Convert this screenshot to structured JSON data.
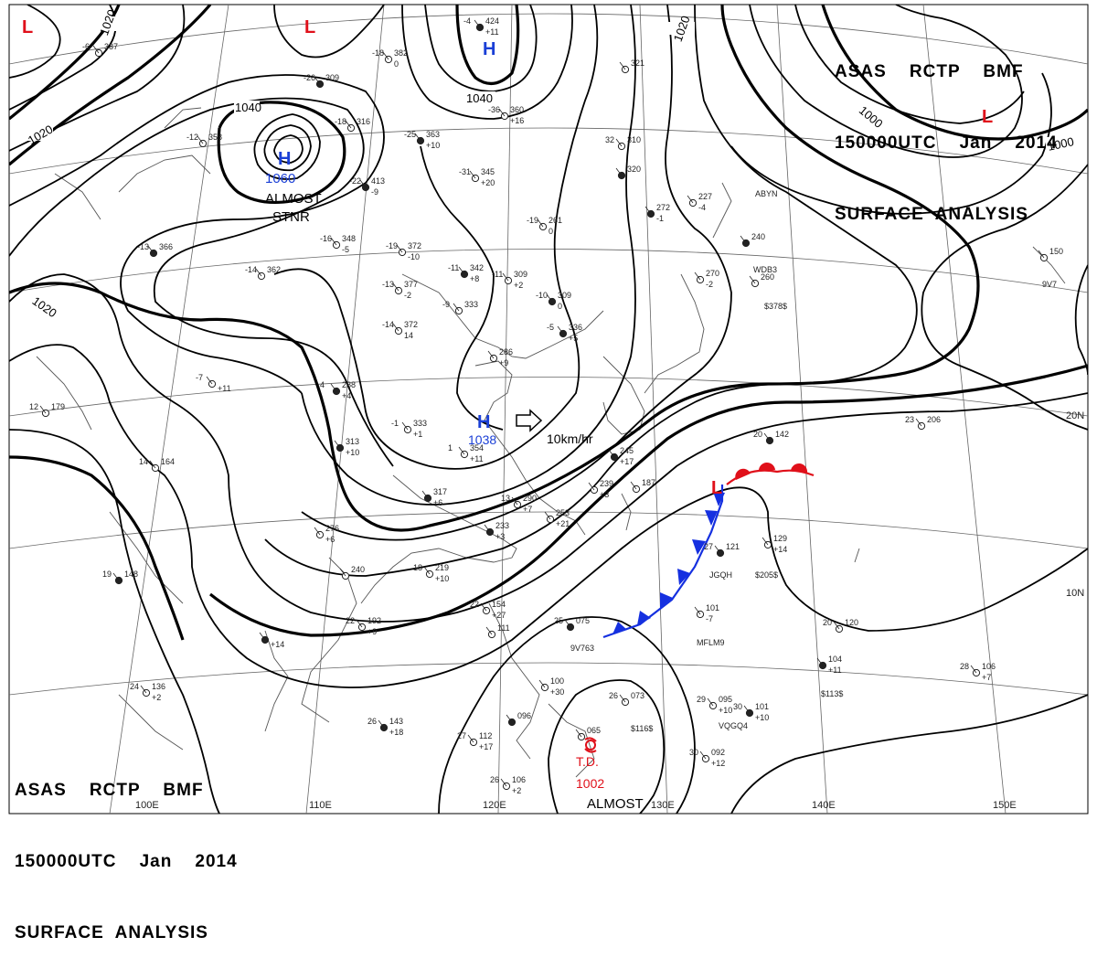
{
  "header": {
    "top_right": {
      "line1": "ASAS    RCTP    BMF",
      "line2": "150000UTC    Jan    2014",
      "line3": "SURFACE  ANALYSIS"
    },
    "bottom_left": {
      "line1": "ASAS    RCTP    BMF",
      "line2": "150000UTC    Jan    2014",
      "line3": "SURFACE  ANALYSIS"
    }
  },
  "colors": {
    "high": "#1a3fd6",
    "low": "#e0101a",
    "cold_front": "#1530e0",
    "warm_front": "#e0101a",
    "isobar": "#000000",
    "grid": "#555555"
  },
  "highs": [
    {
      "symbol": "H",
      "pressure": "1060",
      "note1": "ALMOST",
      "note2": "STNR"
    },
    {
      "symbol": "H",
      "pressure": "1038",
      "motion": "10km/hr"
    },
    {
      "symbol": "H",
      "pressure": ""
    }
  ],
  "lows": [
    {
      "symbol": "L"
    },
    {
      "symbol": "L"
    },
    {
      "symbol": "L"
    },
    {
      "symbol": "L"
    }
  ],
  "tropical_depression": {
    "label": "T.D.",
    "pressure": "1002",
    "note": "ALMOST"
  },
  "isobar_labels": [
    "1020",
    "1040",
    "1040",
    "1020",
    "1020",
    "1000",
    "1000",
    "1020"
  ],
  "longitude_labels": [
    "100E",
    "110E",
    "120E",
    "130E",
    "140E",
    "150E"
  ],
  "latitude_labels": [
    "20N",
    "10N"
  ],
  "station_plots": [
    {
      "t": "-4",
      "p": "424",
      "d": "+11"
    },
    {
      "t": "-6",
      "p": "387",
      "d": ""
    },
    {
      "t": "-18",
      "p": "382",
      "d": "0"
    },
    {
      "t": "-26",
      "p": "309",
      "d": ""
    },
    {
      "t": "-18",
      "p": "316",
      "d": ""
    },
    {
      "t": "-12",
      "p": "358",
      "d": ""
    },
    {
      "t": "-25",
      "p": "363",
      "d": "+10"
    },
    {
      "t": "-36",
      "p": "360",
      "d": "+16"
    },
    {
      "t": "-31",
      "p": "345",
      "d": "+20"
    },
    {
      "t": "-22",
      "p": "413",
      "d": "-9"
    },
    {
      "t": "-16",
      "p": "348",
      "d": "-5"
    },
    {
      "t": "-19",
      "p": "372",
      "d": "-10"
    },
    {
      "t": "-13",
      "p": "366",
      "d": ""
    },
    {
      "t": "-14",
      "p": "362",
      "d": ""
    },
    {
      "t": "-13",
      "p": "377",
      "d": "-2"
    },
    {
      "t": "-11",
      "p": "342",
      "d": "+8"
    },
    {
      "t": "-11",
      "p": "309",
      "d": "+2"
    },
    {
      "t": "-9",
      "p": "333",
      "d": ""
    },
    {
      "t": "-10",
      "p": "309",
      "d": "0"
    },
    {
      "t": "-14",
      "p": "372",
      "d": "14"
    },
    {
      "t": "-19",
      "p": "261",
      "d": "0"
    },
    {
      "t": "-5",
      "p": "336",
      "d": "+5"
    },
    {
      "t": "",
      "p": "286",
      "d": "+9"
    },
    {
      "t": "-7",
      "p": "",
      "d": "+11"
    },
    {
      "t": "4",
      "p": "288",
      "d": "+4"
    },
    {
      "t": "-1",
      "p": "333",
      "d": "+1"
    },
    {
      "t": "1",
      "p": "354",
      "d": "+11"
    },
    {
      "t": "",
      "p": "313",
      "d": "+10"
    },
    {
      "t": "12",
      "p": "179",
      "d": ""
    },
    {
      "t": "14",
      "p": "164",
      "d": ""
    },
    {
      "t": "",
      "p": "317",
      "d": "+6"
    },
    {
      "t": "",
      "p": "276",
      "d": "+6"
    },
    {
      "t": "",
      "p": "240",
      "d": ""
    },
    {
      "t": "19",
      "p": "148",
      "d": ""
    },
    {
      "t": "18",
      "p": "219",
      "d": "+10"
    },
    {
      "t": "13",
      "p": "290",
      "d": "+7"
    },
    {
      "t": "",
      "p": "233",
      "d": "+3"
    },
    {
      "t": "",
      "p": "253",
      "d": "+21"
    },
    {
      "t": "",
      "p": "239",
      "d": "+3"
    },
    {
      "t": "",
      "p": "245",
      "d": "+17"
    },
    {
      "t": "",
      "p": "187",
      "d": ""
    },
    {
      "t": "22",
      "p": "192",
      "d": "+9"
    },
    {
      "t": "",
      "p": "",
      "d": "+14"
    },
    {
      "t": "22",
      "p": "154",
      "d": "+27"
    },
    {
      "t": "",
      "p": "111",
      "d": ""
    },
    {
      "t": "25",
      "p": "075",
      "d": ""
    },
    {
      "t": "26",
      "p": "073",
      "d": ""
    },
    {
      "t": "24",
      "p": "136",
      "d": "+2"
    },
    {
      "t": "26",
      "p": "143",
      "d": "+18"
    },
    {
      "t": "",
      "p": "100",
      "d": "+30"
    },
    {
      "t": "27",
      "p": "112",
      "d": "+17"
    },
    {
      "t": "",
      "p": "096",
      "d": ""
    },
    {
      "t": "26",
      "p": "106",
      "d": "+2"
    },
    {
      "t": "",
      "p": "065",
      "d": ""
    },
    {
      "t": "20",
      "p": "142",
      "d": ""
    },
    {
      "t": "23",
      "p": "206",
      "d": ""
    },
    {
      "t": "",
      "p": "129",
      "d": "+14"
    },
    {
      "t": "27",
      "p": "121",
      "d": ""
    },
    {
      "t": "",
      "p": "101",
      "d": "-7"
    },
    {
      "t": "20",
      "p": "120",
      "d": ""
    },
    {
      "t": "",
      "p": "104",
      "d": "+11"
    },
    {
      "t": "28",
      "p": "106",
      "d": "+7"
    },
    {
      "t": "29",
      "p": "095",
      "d": "+10"
    },
    {
      "t": "30",
      "p": "101",
      "d": "+10"
    },
    {
      "t": "30",
      "p": "092",
      "d": "+12"
    },
    {
      "t": "",
      "p": "227",
      "d": "-4"
    },
    {
      "t": "",
      "p": "272",
      "d": "-1"
    },
    {
      "t": "",
      "p": "270",
      "d": "-2"
    },
    {
      "t": "",
      "p": "260",
      "d": ""
    },
    {
      "t": "",
      "p": "240",
      "d": ""
    },
    {
      "t": "",
      "p": "150",
      "d": ""
    },
    {
      "t": "32",
      "p": "310",
      "d": ""
    },
    {
      "t": "",
      "p": "320",
      "d": ""
    },
    {
      "t": "",
      "p": "321",
      "d": ""
    }
  ],
  "ship_ids": [
    "ABYN",
    "WDB3",
    "$378$",
    "9V7",
    "JGQH",
    "$205$",
    "9V763",
    "MFLM9",
    "$113$",
    "VQGQ4",
    "$116$"
  ]
}
